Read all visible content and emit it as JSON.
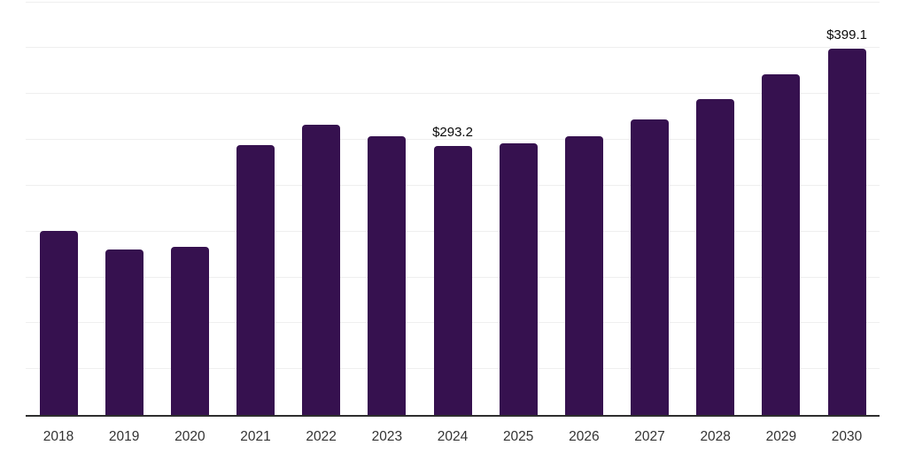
{
  "chart_data": {
    "type": "bar",
    "title": "",
    "xlabel": "",
    "ylabel": "",
    "categories": [
      "2018",
      "2019",
      "2020",
      "2021",
      "2022",
      "2023",
      "2024",
      "2025",
      "2026",
      "2027",
      "2028",
      "2029",
      "2030"
    ],
    "values": [
      201.0,
      180.5,
      183.0,
      294.5,
      316.0,
      304.0,
      293.2,
      296.0,
      303.5,
      322.0,
      344.0,
      371.0,
      399.1
    ],
    "data_labels": {
      "2024": "$293.2",
      "2030": "$399.1"
    },
    "ylim": [
      0,
      450
    ],
    "gridline_step": 50,
    "grid": true,
    "legend": false,
    "y_axis_tick_labels_visible": false,
    "colors": {
      "bar": "#36114F",
      "gridline": "#efefef",
      "axis": "#2e2e2e",
      "value_label": "#0a0a0a",
      "tick_label": "#333333",
      "background": "#ffffff"
    }
  }
}
